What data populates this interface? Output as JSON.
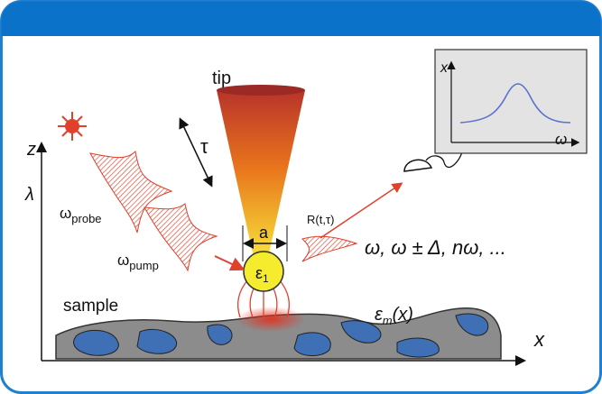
{
  "diagram": {
    "tip_label": "tip",
    "z_axis_label": "z",
    "wavelength_label": "λ",
    "delay_label": "τ",
    "probe": {
      "symbol": "ω",
      "sub": "probe"
    },
    "pump": {
      "symbol": "ω",
      "sub": "pump"
    },
    "size_label": "a",
    "sphere": {
      "symbol": "ε",
      "sub": "1"
    },
    "signal_label": "R(t,τ)",
    "frequencies_label": "ω, ω ± Δ, nω, ...",
    "sample_label": "sample",
    "sample_permittivity": {
      "symbol": "ε",
      "sub": "m",
      "rest": "(x)"
    },
    "x_axis_label": "x",
    "inset": {
      "y_label": "x",
      "x_label": "ω"
    }
  }
}
